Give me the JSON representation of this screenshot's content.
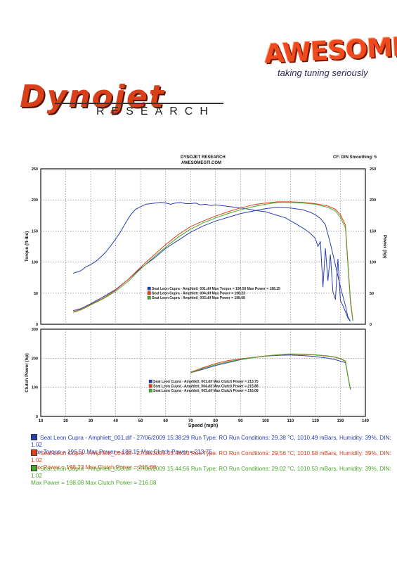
{
  "logos": {
    "awesome": "AWESOME",
    "tagline": "taking tuning seriously",
    "dynojet": "Dynojet",
    "research": "RESEARCH"
  },
  "header": {
    "title": "DYNOJET RESEARCH",
    "subtitle": "AWESOMEGTI.COM",
    "settings": "CF: DIN  Smoothing: 5"
  },
  "colors": {
    "run1": "#2a3fb0",
    "run2": "#e0401a",
    "run3": "#4aa82a"
  },
  "chart_data": [
    {
      "type": "line",
      "title": "DYNOJET RESEARCH",
      "xlabel": "",
      "ylabel": "Torque (ft-lbs)",
      "ylabel_right": "Power (hp)",
      "xlim": [
        10,
        140
      ],
      "ylim": [
        0,
        250
      ],
      "yticks": [
        0,
        50,
        100,
        150,
        200,
        250
      ],
      "legend": [
        "Seat Leon Cupra - Amphlett_001.dif Max Torque = 196.50    Max Power = 188.15",
        "Seat Leon Cupra - Amphlett_004.dif Max Power = 198.23",
        "Seat Leon Cupra - Amphlett_003.dif Max Power = 198.08"
      ],
      "series": [
        {
          "name": "Seat Leon Cupra - Amphlett_001.dif",
          "measure": "Torque",
          "color": "#2a3fb0",
          "x": [
            23,
            26,
            28,
            30,
            32,
            34,
            36,
            38,
            40,
            42,
            44,
            46,
            48,
            50,
            52,
            54,
            56,
            58,
            60,
            62,
            64,
            66,
            68,
            70,
            72,
            74,
            76,
            78,
            80,
            84,
            88,
            92,
            96,
            100,
            104,
            108,
            112,
            116,
            118,
            120,
            121,
            122,
            123,
            124,
            125,
            126,
            127,
            128,
            129,
            130,
            131,
            132,
            133,
            134
          ],
          "y": [
            82,
            86,
            92,
            96,
            101,
            108,
            116,
            126,
            137,
            149,
            163,
            176,
            185,
            189,
            193,
            194,
            195,
            196,
            195,
            193,
            195,
            196,
            194,
            194,
            195,
            192,
            193,
            191,
            192,
            190,
            188,
            186,
            183,
            181,
            176,
            171,
            162,
            152,
            146,
            138,
            125,
            133,
            60,
            122,
            70,
            112,
            52,
            40,
            105,
            38,
            30,
            20,
            10,
            5
          ]
        },
        {
          "name": "Seat Leon Cupra - Amphlett_001.dif",
          "measure": "Power",
          "color": "#2a3fb0",
          "x": [
            23,
            26,
            30,
            35,
            40,
            45,
            50,
            55,
            60,
            65,
            70,
            75,
            80,
            85,
            90,
            95,
            100,
            105,
            110,
            115,
            118,
            120,
            122,
            124,
            126,
            128,
            130,
            132,
            133,
            134
          ],
          "y": [
            22,
            25,
            33,
            44,
            56,
            72,
            90,
            105,
            122,
            135,
            148,
            158,
            166,
            172,
            178,
            182,
            186,
            188,
            187,
            184,
            180,
            176,
            170,
            160,
            130,
            95,
            60,
            30,
            12,
            5
          ]
        },
        {
          "name": "Seat Leon Cupra - Amphlett_004.dif",
          "measure": "Power",
          "color": "#e0401a",
          "x": [
            23,
            26,
            30,
            35,
            40,
            45,
            50,
            55,
            60,
            65,
            70,
            75,
            80,
            85,
            90,
            95,
            100,
            105,
            110,
            115,
            120,
            125,
            128,
            130,
            132,
            133,
            134,
            135
          ],
          "y": [
            20,
            24,
            32,
            42,
            55,
            72,
            92,
            110,
            128,
            144,
            157,
            166,
            174,
            181,
            187,
            192,
            195,
            197,
            197,
            196,
            194,
            190,
            185,
            176,
            160,
            100,
            40,
            6
          ]
        },
        {
          "name": "Seat Leon Cupra - Amphlett_003.dif",
          "measure": "Power",
          "color": "#4aa82a",
          "x": [
            23,
            26,
            30,
            35,
            40,
            45,
            50,
            55,
            60,
            65,
            70,
            75,
            80,
            85,
            90,
            95,
            100,
            105,
            110,
            115,
            120,
            125,
            128,
            130,
            132,
            133,
            134,
            135
          ],
          "y": [
            19,
            23,
            31,
            41,
            53,
            69,
            89,
            107,
            124,
            140,
            153,
            163,
            171,
            178,
            184,
            189,
            193,
            196,
            196,
            195,
            193,
            188,
            182,
            172,
            155,
            95,
            35,
            5
          ]
        }
      ]
    },
    {
      "type": "line",
      "ylabel": "Clutch Power (hp)",
      "xlabel": "Speed (mph)",
      "xlim": [
        10,
        140
      ],
      "ylim": [
        0,
        300
      ],
      "xticks": [
        10,
        20,
        30,
        40,
        50,
        60,
        70,
        80,
        90,
        100,
        110,
        120,
        130,
        140
      ],
      "yticks": [
        0,
        100,
        200,
        300
      ],
      "legend": [
        "Seat Leon Cupra - Amphlett_001.dif Max Clutch Power = 213.75",
        "Seat Leon Cupra - Amphlett_004.dif Max Clutch Power = 215.88",
        "Seat Leon Cupra - Amphlett_003.dif Max Clutch Power = 216.08"
      ],
      "series": [
        {
          "name": "Seat Leon Cupra - Amphlett_001.dif",
          "color": "#2a3fb0",
          "x": [
            70,
            75,
            80,
            85,
            90,
            95,
            100,
            105,
            110,
            115,
            120,
            125,
            128,
            130,
            132,
            133,
            134
          ],
          "y": [
            150,
            162,
            175,
            185,
            195,
            202,
            207,
            210,
            211,
            209,
            206,
            200,
            195,
            190,
            185,
            140,
            95
          ]
        },
        {
          "name": "Seat Leon Cupra - Amphlett_004.dif",
          "color": "#e0401a",
          "x": [
            70,
            75,
            80,
            85,
            90,
            95,
            100,
            105,
            110,
            115,
            120,
            125,
            128,
            130,
            132,
            133,
            134
          ],
          "y": [
            152,
            168,
            182,
            192,
            198,
            203,
            208,
            212,
            214,
            213,
            211,
            207,
            203,
            198,
            190,
            140,
            93
          ]
        },
        {
          "name": "Seat Leon Cupra - Amphlett_003.dif",
          "color": "#4aa82a",
          "x": [
            70,
            75,
            80,
            85,
            90,
            95,
            100,
            105,
            110,
            115,
            120,
            125,
            128,
            130,
            132,
            133,
            134
          ],
          "y": [
            150,
            165,
            178,
            188,
            196,
            202,
            207,
            212,
            215,
            214,
            212,
            208,
            204,
            199,
            191,
            138,
            92
          ]
        }
      ]
    }
  ],
  "legend_block": [
    {
      "line1": "Seat Leon Cupra - Amphlett_001.dif - 27/06/2009 15:38:29  Run Type: RO  Run Conditions: 29.38 °C, 1010.49 mBars,  Humidity:  39%, DIN: 1.02",
      "line2": "Max Torque = 196.50  Max Power = 188.15  Max Clutch Power = 213.75",
      "color": "#2a3fb0"
    },
    {
      "line1": "Seat Leon Cupra - Amphlett_004.dif - 27/06/2009 15:46:33  Run Type: RO  Run Conditions: 29.56 °C, 1010.58 mBars,  Humidity:  39%, DIN: 1.02",
      "line2": "Max Power = 198.23  Max Clutch Power = 215.88",
      "color": "#e0401a"
    },
    {
      "line1": "Seat Leon Cupra - Amphlett_003.dif - 27/06/2009 15:44:56  Run Type: RO  Run Conditions: 29.02 °C, 1010.53 mBars,  Humidity:  39%, DIN: 1.02",
      "line2": "Max Power = 198.08  Max Clutch Power = 216.08",
      "color": "#4aa82a"
    }
  ]
}
